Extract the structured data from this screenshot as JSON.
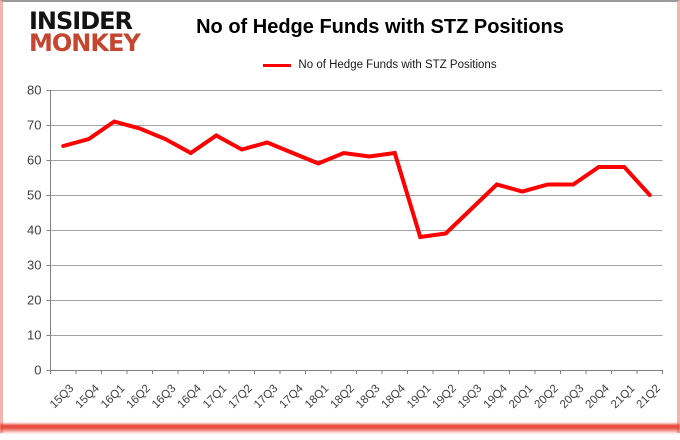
{
  "logo": {
    "line1": "INSIDER",
    "line2": "MONKEY",
    "color": "#c5452f"
  },
  "header": {
    "title": "No of Hedge Funds with STZ Positions"
  },
  "legend": {
    "label": "No of Hedge Funds with STZ Positions"
  },
  "colors": {
    "series_line": "#ff0000",
    "gridline": "#a3a3a3",
    "axis": "#808080",
    "tick_label": "#404040",
    "border_pink": "#f2b4ab",
    "bottom_glow": "#e22c1c"
  },
  "chart_data": {
    "type": "line",
    "title": "No of Hedge Funds with STZ Positions",
    "categories": [
      "15Q3",
      "15Q4",
      "16Q1",
      "16Q2",
      "16Q3",
      "16Q4",
      "17Q1",
      "17Q2",
      "17Q3",
      "17Q4",
      "18Q1",
      "18Q2",
      "18Q3",
      "18Q4",
      "19Q1",
      "19Q2",
      "19Q3",
      "19Q4",
      "20Q1",
      "20Q2",
      "20Q3",
      "20Q4",
      "21Q1",
      "21Q2"
    ],
    "series": [
      {
        "name": "No of Hedge Funds with STZ Positions",
        "color": "#ff0000",
        "values": [
          64,
          66,
          71,
          69,
          66,
          62,
          67,
          63,
          65,
          62,
          59,
          62,
          61,
          62,
          38,
          39,
          46,
          53,
          51,
          53,
          53,
          58,
          58,
          50
        ]
      }
    ],
    "xlabel": "",
    "ylabel": "",
    "ylim": [
      0,
      80
    ],
    "yticks": [
      0,
      10,
      20,
      30,
      40,
      50,
      60,
      70,
      80
    ],
    "grid": true,
    "legend_position": "top-center",
    "x_label_rotation": -45
  }
}
